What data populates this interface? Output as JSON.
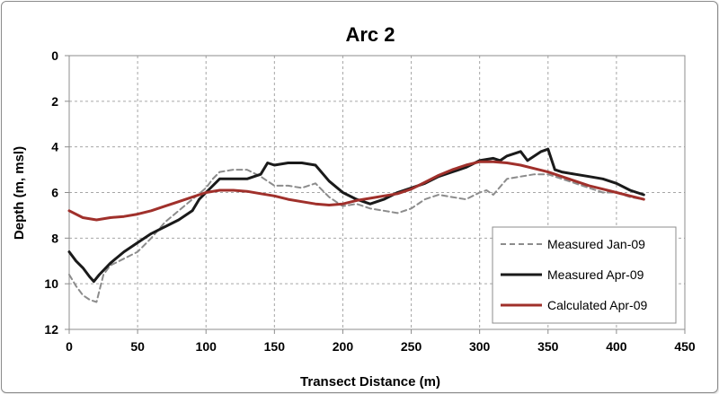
{
  "chart_data": {
    "type": "line",
    "title": "Arc 2",
    "xlabel": "Transect Distance (m)",
    "ylabel": "Depth (m, msl)",
    "xlim": [
      0,
      450
    ],
    "ylim": [
      0,
      12
    ],
    "y_inverted": true,
    "xticks": [
      "0",
      "50",
      "100",
      "150",
      "200",
      "250",
      "300",
      "350",
      "400",
      "450"
    ],
    "yticks": [
      "0",
      "2",
      "4",
      "6",
      "8",
      "10",
      "12"
    ],
    "grid": true,
    "legend_position": "bottom-right",
    "series": [
      {
        "name": "Measured Jan-09",
        "color": "#8c8c8c",
        "style": "dashed",
        "x": [
          0,
          5,
          10,
          15,
          20,
          25,
          30,
          40,
          50,
          60,
          70,
          80,
          90,
          100,
          105,
          110,
          120,
          130,
          140,
          150,
          160,
          170,
          180,
          190,
          200,
          210,
          220,
          230,
          240,
          250,
          260,
          270,
          280,
          290,
          300,
          305,
          310,
          320,
          330,
          340,
          350,
          360,
          370,
          380,
          390,
          400,
          410,
          420
        ],
        "y": [
          9.6,
          10.1,
          10.5,
          10.7,
          10.8,
          9.6,
          9.2,
          8.9,
          8.6,
          8.0,
          7.3,
          6.8,
          6.3,
          5.8,
          5.4,
          5.1,
          5.0,
          5.0,
          5.3,
          5.7,
          5.7,
          5.8,
          5.6,
          6.2,
          6.6,
          6.5,
          6.7,
          6.8,
          6.9,
          6.7,
          6.3,
          6.1,
          6.2,
          6.3,
          6.0,
          5.9,
          6.1,
          5.4,
          5.3,
          5.2,
          5.2,
          5.4,
          5.6,
          5.8,
          6.0,
          6.0,
          6.2,
          6.3
        ]
      },
      {
        "name": "Measured Apr-09",
        "color": "#1a1a1a",
        "style": "solid",
        "x": [
          0,
          5,
          10,
          15,
          18,
          22,
          30,
          40,
          50,
          60,
          70,
          80,
          90,
          95,
          100,
          110,
          120,
          130,
          140,
          145,
          150,
          160,
          170,
          180,
          190,
          200,
          210,
          220,
          230,
          240,
          250,
          260,
          270,
          280,
          290,
          300,
          310,
          315,
          320,
          330,
          335,
          345,
          350,
          355,
          360,
          370,
          380,
          390,
          400,
          410,
          420
        ],
        "y": [
          8.6,
          9.0,
          9.3,
          9.7,
          9.9,
          9.6,
          9.1,
          8.6,
          8.2,
          7.8,
          7.5,
          7.2,
          6.8,
          6.3,
          6.0,
          5.4,
          5.4,
          5.4,
          5.2,
          4.7,
          4.8,
          4.7,
          4.7,
          4.8,
          5.5,
          6.0,
          6.3,
          6.5,
          6.3,
          6.0,
          5.8,
          5.6,
          5.3,
          5.1,
          4.9,
          4.6,
          4.5,
          4.6,
          4.4,
          4.2,
          4.6,
          4.2,
          4.1,
          5.0,
          5.1,
          5.2,
          5.3,
          5.4,
          5.6,
          5.9,
          6.1
        ]
      },
      {
        "name": "Calculated Apr-09",
        "color": "#a0302b",
        "style": "solid",
        "x": [
          0,
          10,
          20,
          30,
          40,
          50,
          60,
          70,
          80,
          90,
          100,
          110,
          120,
          130,
          140,
          150,
          160,
          170,
          180,
          190,
          200,
          210,
          220,
          230,
          240,
          250,
          260,
          270,
          280,
          290,
          300,
          310,
          320,
          330,
          340,
          350,
          360,
          370,
          380,
          390,
          400,
          410,
          420
        ],
        "y": [
          6.8,
          7.1,
          7.2,
          7.1,
          7.05,
          6.95,
          6.8,
          6.6,
          6.4,
          6.2,
          6.0,
          5.9,
          5.9,
          5.95,
          6.05,
          6.15,
          6.3,
          6.4,
          6.5,
          6.55,
          6.5,
          6.35,
          6.25,
          6.15,
          6.05,
          5.85,
          5.55,
          5.25,
          5.0,
          4.8,
          4.65,
          4.65,
          4.7,
          4.8,
          4.95,
          5.1,
          5.3,
          5.5,
          5.7,
          5.85,
          6.0,
          6.15,
          6.3
        ]
      }
    ]
  }
}
